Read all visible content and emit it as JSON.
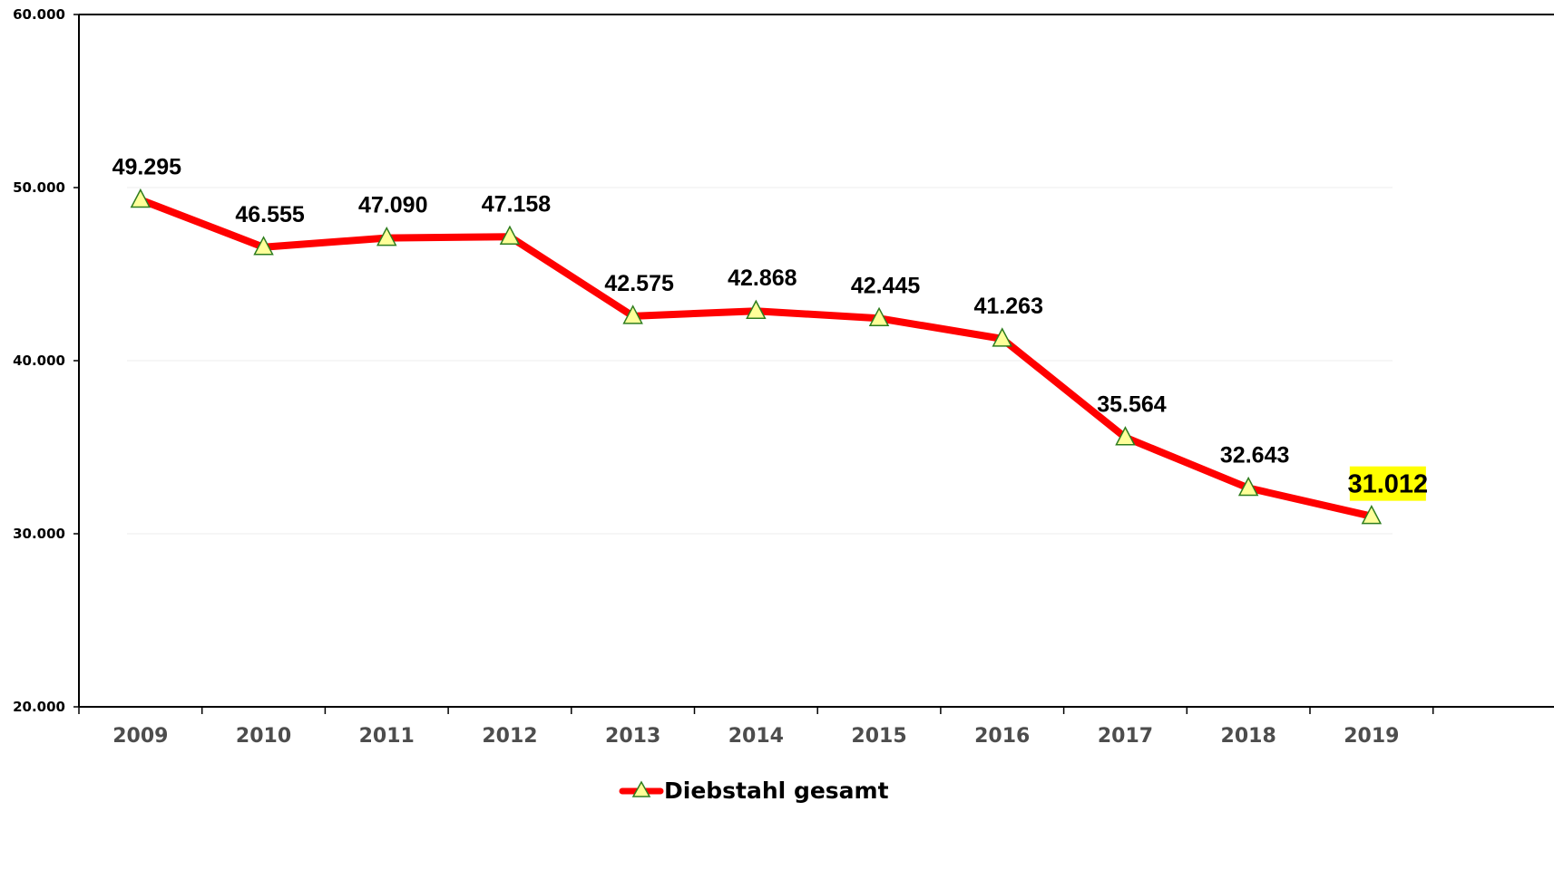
{
  "chart_data": {
    "type": "line",
    "categories": [
      "2009",
      "2010",
      "2011",
      "2012",
      "2013",
      "2014",
      "2015",
      "2016",
      "2017",
      "2018",
      "2019"
    ],
    "series": [
      {
        "name": "Diebstahl gesamt",
        "values": [
          49295,
          46555,
          47090,
          47158,
          42575,
          42868,
          42445,
          41263,
          35564,
          32643,
          31012
        ],
        "labels": [
          "49.295",
          "46.555",
          "47.090",
          "47.158",
          "42.575",
          "42.868",
          "42.445",
          "41.263",
          "35.564",
          "32.643",
          "31.012"
        ],
        "color": "#ff0000",
        "marker": "triangle",
        "marker_fill": "#ffff99",
        "marker_stroke": "#2e7d1e"
      }
    ],
    "highlight": {
      "index": 10,
      "background": "#ffff00"
    },
    "ylim": [
      20000,
      60000
    ],
    "yticks": [
      20000,
      30000,
      40000,
      50000,
      60000
    ],
    "ytick_labels": [
      "20.000",
      "30.000",
      "40.000",
      "50.000",
      "60.000"
    ],
    "grid": true,
    "legend_position": "bottom-center",
    "title": "",
    "xlabel": "",
    "ylabel": ""
  }
}
